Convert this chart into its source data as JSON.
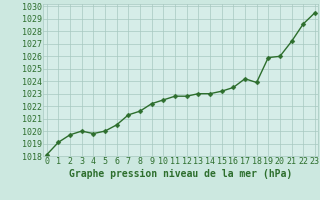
{
  "x": [
    0,
    1,
    2,
    3,
    4,
    5,
    6,
    7,
    8,
    9,
    10,
    11,
    12,
    13,
    14,
    15,
    16,
    17,
    18,
    19,
    20,
    21,
    22,
    23
  ],
  "y": [
    1018.1,
    1019.1,
    1019.7,
    1020.0,
    1019.8,
    1020.0,
    1020.5,
    1021.3,
    1021.6,
    1022.2,
    1022.5,
    1022.8,
    1022.8,
    1023.0,
    1023.0,
    1023.2,
    1023.5,
    1024.2,
    1023.9,
    1025.9,
    1026.0,
    1027.2,
    1028.6,
    1029.5
  ],
  "line_color": "#2d6e2d",
  "marker": "D",
  "marker_size": 2.5,
  "linewidth": 1.0,
  "bg_color": "#cce8e0",
  "plot_bg_color": "#d6ede8",
  "grid_color": "#a8c8c0",
  "ylim_min": 1018,
  "ylim_max": 1030,
  "xlim_min": 0,
  "xlim_max": 23,
  "ytick_step": 1,
  "xtick_labels": [
    "0",
    "1",
    "2",
    "3",
    "4",
    "5",
    "6",
    "7",
    "8",
    "9",
    "10",
    "11",
    "12",
    "13",
    "14",
    "15",
    "16",
    "17",
    "18",
    "19",
    "20",
    "21",
    "22",
    "23"
  ],
  "xlabel": "Graphe pression niveau de la mer (hPa)",
  "xlabel_color": "#2d6e2d",
  "xlabel_fontsize": 7,
  "tick_fontsize": 6,
  "tick_color": "#2d6e2d"
}
